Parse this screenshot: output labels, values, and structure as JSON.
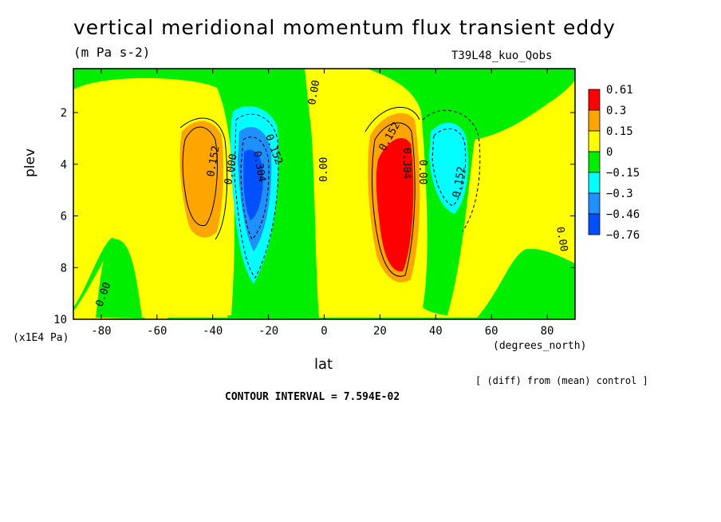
{
  "chart_data": {
    "type": "heatmap",
    "title": "vertical meridional momentum flux transient eddy",
    "units": "(m Pa s-2)",
    "experiment": "T39L48_kuo_Qobs",
    "xlabel": "lat",
    "x_units": "(degrees_north)",
    "ylabel": "plev",
    "y_units": "(x1E4 Pa)",
    "xlim": [
      -90,
      90
    ],
    "ylim": [
      10,
      0.3
    ],
    "x_ticks": [
      "-80",
      "-60",
      "-40",
      "-20",
      "0",
      "20",
      "40",
      "60",
      "80"
    ],
    "y_ticks": [
      "2",
      "4",
      "6",
      "8",
      "10"
    ],
    "legend": {
      "labels": [
        "0.61",
        "0.3",
        "0.15",
        "0",
        "−0.15",
        "−0.3",
        "−0.46",
        "−0.76"
      ],
      "colors": [
        "#ff0000",
        "#ffa500",
        "#ffff00",
        "#00ee00",
        "#00ffff",
        "#1e90ff",
        "#0050ff"
      ]
    },
    "features": [
      {
        "lat": -44,
        "plev": 4.2,
        "value": 0.152,
        "sign": "positive"
      },
      {
        "lat": -28,
        "plev": 4.2,
        "value": -0.304,
        "sign": "negative"
      },
      {
        "lat": 26,
        "plev": 4.3,
        "value": 0.456,
        "sign": "positive"
      },
      {
        "lat": 43,
        "plev": 3.6,
        "value": -0.152,
        "sign": "negative"
      }
    ],
    "contour_labels": [
      "0.00",
      "0.152",
      "0.000",
      "0.152",
      "0.304",
      "0.00",
      "0.152",
      "0.304",
      "0.00",
      "0.152",
      "0.00",
      "0.00"
    ],
    "note": "[ (diff) from (mean) control ]",
    "contour_interval": "CONTOUR INTERVAL = 7.594E-02"
  }
}
